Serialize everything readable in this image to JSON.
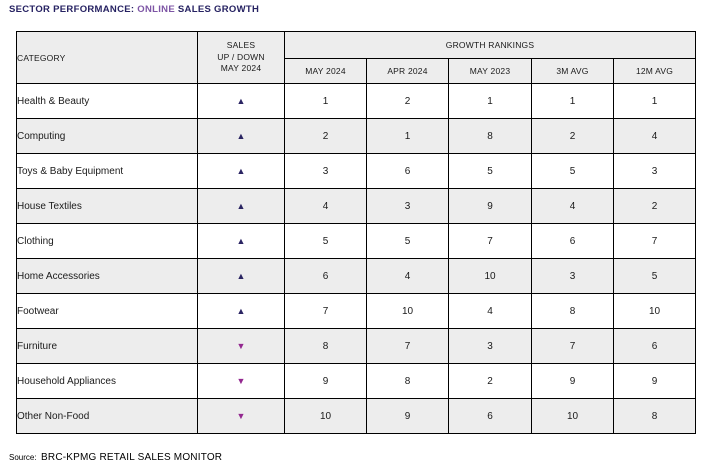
{
  "title": {
    "part1": "SECTOR PERFORMANCE: ",
    "highlight": "ONLINE",
    "part2": " SALES GROWTH"
  },
  "colors": {
    "title_dark": "#262262",
    "title_purple": "#7D55A5",
    "up_triangle": "#2A2462",
    "down_triangle": "#93278F",
    "header_bg": "#EDEDED",
    "alt_row_bg": "#EDEDED",
    "border": "#000000"
  },
  "icons": {
    "up_triangle": "▲",
    "down_triangle": "▼"
  },
  "table": {
    "headers": {
      "category": "CATEGORY",
      "sales_updown": "SALES\nUP / DOWN\nMAY 2024",
      "growth_rankings": "GROWTH RANKINGS",
      "subheaders": [
        "MAY 2024",
        "APR 2024",
        "MAY 2023",
        "3M AVG",
        "12M AVG"
      ]
    },
    "rows": [
      {
        "category": "Health & Beauty",
        "direction": "up",
        "rankings": [
          1,
          2,
          1,
          1,
          1
        ]
      },
      {
        "category": "Computing",
        "direction": "up",
        "rankings": [
          2,
          1,
          8,
          2,
          4
        ]
      },
      {
        "category": "Toys & Baby Equipment",
        "direction": "up",
        "rankings": [
          3,
          6,
          5,
          5,
          3
        ]
      },
      {
        "category": "House Textiles",
        "direction": "up",
        "rankings": [
          4,
          3,
          9,
          4,
          2
        ]
      },
      {
        "category": "Clothing",
        "direction": "up",
        "rankings": [
          5,
          5,
          7,
          6,
          7
        ]
      },
      {
        "category": "Home Accessories",
        "direction": "up",
        "rankings": [
          6,
          4,
          10,
          3,
          5
        ]
      },
      {
        "category": "Footwear",
        "direction": "up",
        "rankings": [
          7,
          10,
          4,
          8,
          10
        ]
      },
      {
        "category": "Furniture",
        "direction": "down",
        "rankings": [
          8,
          7,
          3,
          7,
          6
        ]
      },
      {
        "category": "Household Appliances",
        "direction": "down",
        "rankings": [
          9,
          8,
          2,
          9,
          9
        ]
      },
      {
        "category": "Other Non-Food",
        "direction": "down",
        "rankings": [
          10,
          9,
          6,
          10,
          8
        ]
      }
    ]
  },
  "footer": {
    "source_label": "Source:",
    "source_text": "BRC-KPMG RETAIL SALES MONITOR"
  },
  "chart_data": {
    "type": "table",
    "title": "SECTOR PERFORMANCE: ONLINE SALES GROWTH",
    "columns": [
      "CATEGORY",
      "SALES UP / DOWN MAY 2024",
      "MAY 2024",
      "APR 2024",
      "MAY 2023",
      "3M AVG",
      "12M AVG"
    ],
    "column_group": "GROWTH RANKINGS",
    "rows": [
      [
        "Health & Beauty",
        "up",
        1,
        2,
        1,
        1,
        1
      ],
      [
        "Computing",
        "up",
        2,
        1,
        8,
        2,
        4
      ],
      [
        "Toys & Baby Equipment",
        "up",
        3,
        6,
        5,
        5,
        3
      ],
      [
        "House Textiles",
        "up",
        4,
        3,
        9,
        4,
        2
      ],
      [
        "Clothing",
        "up",
        5,
        5,
        7,
        6,
        7
      ],
      [
        "Home Accessories",
        "up",
        6,
        4,
        10,
        3,
        5
      ],
      [
        "Footwear",
        "up",
        7,
        10,
        4,
        8,
        10
      ],
      [
        "Furniture",
        "down",
        8,
        7,
        3,
        7,
        6
      ],
      [
        "Household Appliances",
        "down",
        9,
        8,
        2,
        9,
        9
      ],
      [
        "Other Non-Food",
        "down",
        10,
        9,
        6,
        10,
        8
      ]
    ],
    "source": "BRC-KPMG RETAIL SALES MONITOR"
  }
}
